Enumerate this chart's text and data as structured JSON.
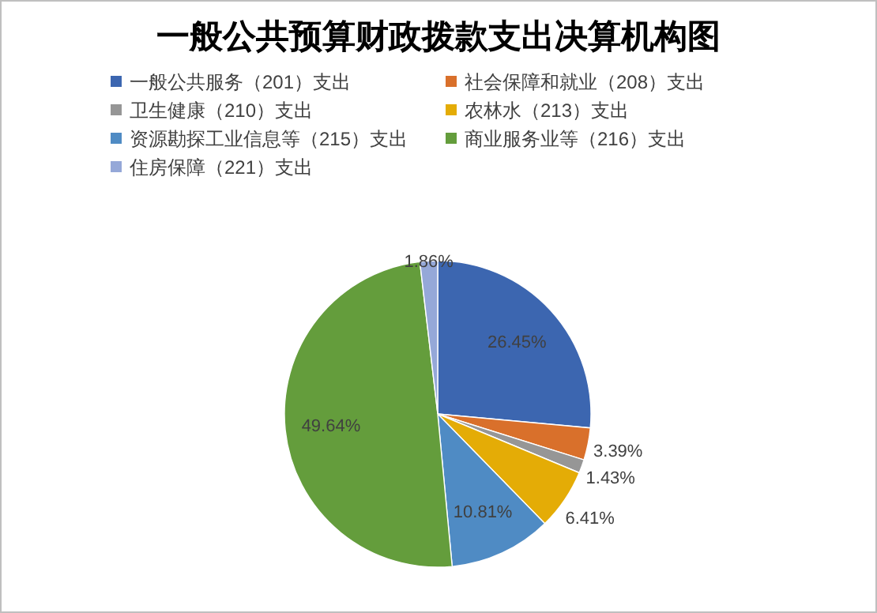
{
  "chart_data": {
    "type": "pie",
    "title": "一般公共预算财政拨款支出决算机构图",
    "categories": [
      "一般公共服务（201）支出",
      "社会保障和就业（208）支出",
      "卫生健康（210）支出",
      "农林水（213）支出",
      "资源勘探工业信息等（215）支出",
      "商业服务业等（216）支出",
      "住房保障（221）支出"
    ],
    "values": [
      26.45,
      3.39,
      1.43,
      6.41,
      10.81,
      49.64,
      1.86
    ],
    "colors": [
      "#3c66b0",
      "#d9702b",
      "#969696",
      "#e4ac06",
      "#4f8bc4",
      "#649d3c",
      "#95a8d8"
    ],
    "value_labels": [
      "26.45%",
      "3.39%",
      "1.43%",
      "6.41%",
      "10.81%",
      "49.64%",
      "1.86%"
    ],
    "legend": "top"
  }
}
